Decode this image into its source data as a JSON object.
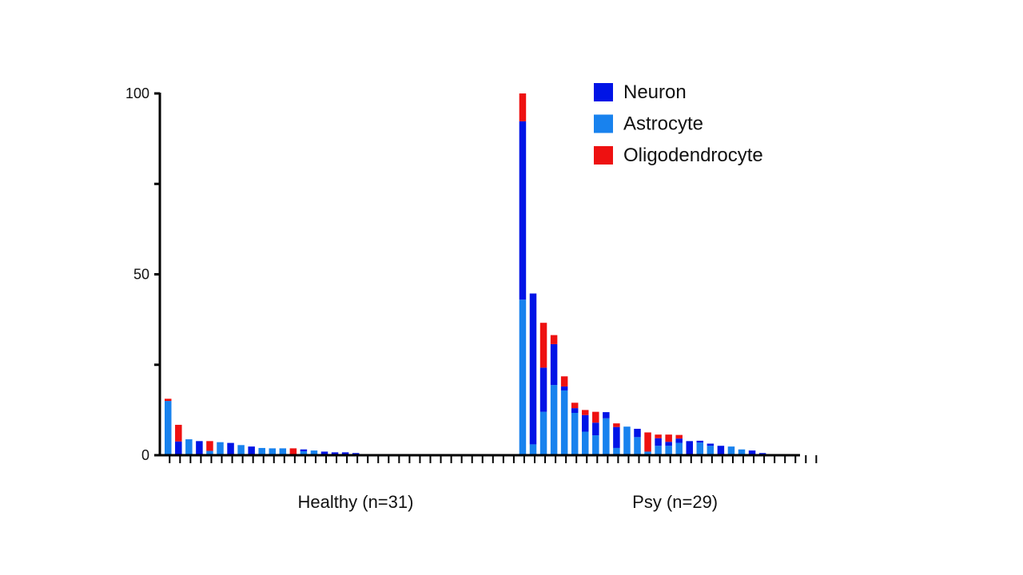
{
  "chart_data": {
    "type": "bar",
    "stacked": true,
    "title": "",
    "xlabel": "",
    "ylabel": "",
    "ylim": [
      0,
      100
    ],
    "yticks": [
      0,
      50,
      100
    ],
    "group_labels": [
      "Healthy (n=31)",
      "Psy (n=29)"
    ],
    "legend_position": "top-right",
    "series": [
      {
        "name": "Neuron",
        "color": "#0014e6"
      },
      {
        "name": "Astrocyte",
        "color": "#1882ee"
      },
      {
        "name": "Oligodendrocyte",
        "color": "#ee1111"
      }
    ],
    "groups": [
      {
        "label": "Healthy (n=31)",
        "bars": [
          {
            "Astrocyte": 15.0,
            "Neuron": 0,
            "Oligodendrocyte": 0.6
          },
          {
            "Astrocyte": 0,
            "Neuron": 3.8,
            "Oligodendrocyte": 4.6
          },
          {
            "Astrocyte": 4.4,
            "Neuron": 0,
            "Oligodendrocyte": 0
          },
          {
            "Astrocyte": 0,
            "Neuron": 3.9,
            "Oligodendrocyte": 0
          },
          {
            "Astrocyte": 1.2,
            "Neuron": 0,
            "Oligodendrocyte": 2.7
          },
          {
            "Astrocyte": 3.6,
            "Neuron": 0,
            "Oligodendrocyte": 0
          },
          {
            "Astrocyte": 0,
            "Neuron": 3.4,
            "Oligodendrocyte": 0
          },
          {
            "Astrocyte": 2.8,
            "Neuron": 0,
            "Oligodendrocyte": 0
          },
          {
            "Astrocyte": 0,
            "Neuron": 2.4,
            "Oligodendrocyte": 0
          },
          {
            "Astrocyte": 2.0,
            "Neuron": 0,
            "Oligodendrocyte": 0
          },
          {
            "Astrocyte": 1.9,
            "Neuron": 0,
            "Oligodendrocyte": 0
          },
          {
            "Astrocyte": 1.9,
            "Neuron": 0,
            "Oligodendrocyte": 0
          },
          {
            "Astrocyte": 0,
            "Neuron": 0,
            "Oligodendrocyte": 1.9
          },
          {
            "Astrocyte": 1.1,
            "Neuron": 0.5,
            "Oligodendrocyte": 0
          },
          {
            "Astrocyte": 1.3,
            "Neuron": 0,
            "Oligodendrocyte": 0
          },
          {
            "Astrocyte": 0,
            "Neuron": 1.0,
            "Oligodendrocyte": 0
          },
          {
            "Astrocyte": 0,
            "Neuron": 0.8,
            "Oligodendrocyte": 0
          },
          {
            "Astrocyte": 0,
            "Neuron": 0.8,
            "Oligodendrocyte": 0
          },
          {
            "Astrocyte": 0.3,
            "Neuron": 0.3,
            "Oligodendrocyte": 0
          },
          {
            "Astrocyte": 0,
            "Neuron": 0,
            "Oligodendrocyte": 0
          },
          {
            "Astrocyte": 0,
            "Neuron": 0,
            "Oligodendrocyte": 0
          },
          {
            "Astrocyte": 0,
            "Neuron": 0,
            "Oligodendrocyte": 0
          },
          {
            "Astrocyte": 0,
            "Neuron": 0,
            "Oligodendrocyte": 0
          },
          {
            "Astrocyte": 0,
            "Neuron": 0,
            "Oligodendrocyte": 0
          },
          {
            "Astrocyte": 0,
            "Neuron": 0,
            "Oligodendrocyte": 0
          },
          {
            "Astrocyte": 0,
            "Neuron": 0,
            "Oligodendrocyte": 0
          },
          {
            "Astrocyte": 0,
            "Neuron": 0,
            "Oligodendrocyte": 0
          },
          {
            "Astrocyte": 0,
            "Neuron": 0,
            "Oligodendrocyte": 0
          },
          {
            "Astrocyte": 0,
            "Neuron": 0,
            "Oligodendrocyte": 0
          },
          {
            "Astrocyte": 0,
            "Neuron": 0,
            "Oligodendrocyte": 0
          },
          {
            "Astrocyte": 0,
            "Neuron": 0,
            "Oligodendrocyte": 0
          }
        ]
      },
      {
        "label": "Psy (n=29)",
        "bars": [
          {
            "Astrocyte": 43.0,
            "Neuron": 49.3,
            "Oligodendrocyte": 7.7
          },
          {
            "Astrocyte": 3.0,
            "Neuron": 41.7,
            "Oligodendrocyte": 0
          },
          {
            "Astrocyte": 12.0,
            "Neuron": 12.2,
            "Oligodendrocyte": 12.4
          },
          {
            "Astrocyte": 19.4,
            "Neuron": 11.3,
            "Oligodendrocyte": 2.5
          },
          {
            "Astrocyte": 17.9,
            "Neuron": 1.1,
            "Oligodendrocyte": 2.8
          },
          {
            "Astrocyte": 11.7,
            "Neuron": 1.3,
            "Oligodendrocyte": 1.5
          },
          {
            "Astrocyte": 6.5,
            "Neuron": 4.6,
            "Oligodendrocyte": 1.4
          },
          {
            "Astrocyte": 5.5,
            "Neuron": 3.5,
            "Oligodendrocyte": 3.0
          },
          {
            "Astrocyte": 10.2,
            "Neuron": 1.7,
            "Oligodendrocyte": 0
          },
          {
            "Astrocyte": 2.0,
            "Neuron": 5.8,
            "Oligodendrocyte": 1.0
          },
          {
            "Astrocyte": 7.9,
            "Neuron": 0,
            "Oligodendrocyte": 0
          },
          {
            "Astrocyte": 5.0,
            "Neuron": 2.3,
            "Oligodendrocyte": 0
          },
          {
            "Astrocyte": 1.0,
            "Neuron": 0,
            "Oligodendrocyte": 5.3
          },
          {
            "Astrocyte": 2.6,
            "Neuron": 2.1,
            "Oligodendrocyte": 1.0
          },
          {
            "Astrocyte": 2.6,
            "Neuron": 1.1,
            "Oligodendrocyte": 2.0
          },
          {
            "Astrocyte": 3.4,
            "Neuron": 1.2,
            "Oligodendrocyte": 1.0
          },
          {
            "Astrocyte": 0,
            "Neuron": 3.9,
            "Oligodendrocyte": 0
          },
          {
            "Astrocyte": 3.5,
            "Neuron": 0.5,
            "Oligodendrocyte": 0
          },
          {
            "Astrocyte": 2.6,
            "Neuron": 0.6,
            "Oligodendrocyte": 0
          },
          {
            "Astrocyte": 0,
            "Neuron": 2.6,
            "Oligodendrocyte": 0
          },
          {
            "Astrocyte": 2.4,
            "Neuron": 0,
            "Oligodendrocyte": 0
          },
          {
            "Astrocyte": 1.6,
            "Neuron": 0,
            "Oligodendrocyte": 0
          },
          {
            "Astrocyte": 0,
            "Neuron": 1.3,
            "Oligodendrocyte": 0
          },
          {
            "Astrocyte": 0,
            "Neuron": 0.6,
            "Oligodendrocyte": 0
          },
          {
            "Astrocyte": 0,
            "Neuron": 0,
            "Oligodendrocyte": 0
          },
          {
            "Astrocyte": 0,
            "Neuron": 0,
            "Oligodendrocyte": 0
          },
          {
            "Astrocyte": 0,
            "Neuron": 0,
            "Oligodendrocyte": 0
          },
          {
            "Astrocyte": 0,
            "Neuron": 0,
            "Oligodendrocyte": 0
          },
          {
            "Astrocyte": 0,
            "Neuron": 0,
            "Oligodendrocyte": 0
          }
        ]
      }
    ]
  }
}
